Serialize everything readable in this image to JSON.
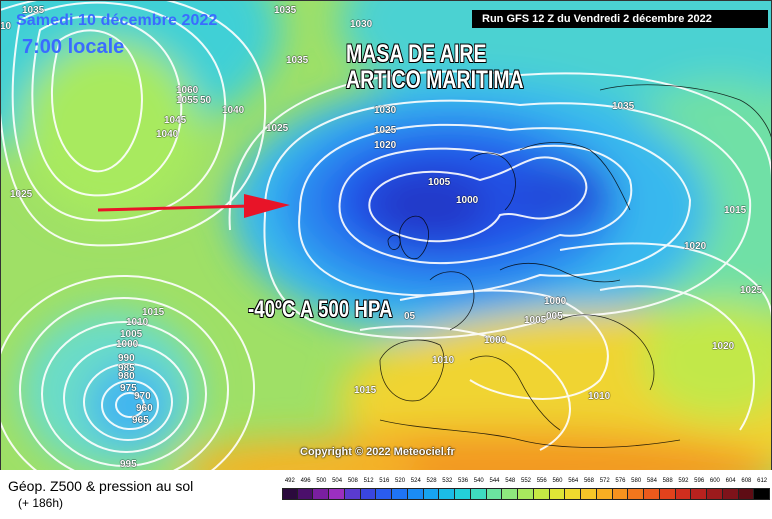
{
  "header": {
    "date": "Samedi 10 décembre 2022",
    "time": "7:00 locale",
    "run": "Run GFS 12 Z du Vendredi 2 décembre 2022"
  },
  "annotations": {
    "air_mass_line1": "MASA DE AIRE",
    "air_mass_line2": "ARTICO MARITIMA",
    "temperature": "-40ºC A 500 HPA"
  },
  "copyright": "Copyright © 2022 Meteociel.fr",
  "legend": {
    "title": "Géop. Z500 & pression au sol",
    "subtitle": "(+ 186h)",
    "scale_values": [
      "492",
      "496",
      "500",
      "504",
      "508",
      "512",
      "516",
      "520",
      "524",
      "528",
      "532",
      "536",
      "540",
      "544",
      "548",
      "552",
      "556",
      "560",
      "564",
      "568",
      "572",
      "576",
      "580",
      "584",
      "588",
      "592",
      "596",
      "600",
      "604",
      "608",
      "612"
    ],
    "scale_colors": [
      "#2b0a3d",
      "#4b0f6b",
      "#7a1fa0",
      "#9b2fc0",
      "#5a3bd0",
      "#3a46e0",
      "#2a5cf0",
      "#1f74f5",
      "#1a8cf5",
      "#17a4f0",
      "#1bbce6",
      "#23d0d8",
      "#3fdcc0",
      "#6be4a0",
      "#8ee87e",
      "#a8ea5e",
      "#c6ea44",
      "#dfe636",
      "#f0da2e",
      "#f7c628",
      "#f8ae22",
      "#f6921e",
      "#f2761c",
      "#ec5a1c",
      "#e2421c",
      "#d12e1e",
      "#b8221e",
      "#9c1a1c",
      "#7e131a",
      "#5e0c14",
      "#000000"
    ]
  },
  "pressure_labels": [
    {
      "text": "1035",
      "name": "isobar-label-1035-nw"
    },
    {
      "text": "1060",
      "name": "isobar-label-1060"
    },
    {
      "text": "1055",
      "name": "isobar-label-1055"
    },
    {
      "text": "50",
      "name": "isobar-label-1050-fragment"
    },
    {
      "text": "1040",
      "name": "isobar-label-1040-greenland-east"
    },
    {
      "text": "1045",
      "name": "isobar-label-1045"
    },
    {
      "text": "1040",
      "name": "isobar-label-1040-greenland-south"
    },
    {
      "text": "1035",
      "name": "isobar-label-1035-north"
    },
    {
      "text": "1030",
      "name": "isobar-label-1030-north"
    },
    {
      "text": "1035",
      "name": "isobar-label-1035-iceland"
    },
    {
      "text": "1030",
      "name": "isobar-label-1030-center"
    },
    {
      "text": "1025",
      "name": "isobar-label-1025-center"
    },
    {
      "text": "1020",
      "name": "isobar-label-1020-center"
    },
    {
      "text": "1035",
      "name": "isobar-label-1035-scandinavia"
    },
    {
      "text": "1025",
      "name": "isobar-label-1025-west"
    },
    {
      "text": "1005",
      "name": "isobar-label-1005-low"
    },
    {
      "text": "1000",
      "name": "isobar-label-1000-low"
    },
    {
      "text": "1015",
      "name": "isobar-label-1015-russia"
    },
    {
      "text": "1020",
      "name": "isobar-label-1020-east"
    },
    {
      "text": "1025",
      "name": "isobar-label-1025-east"
    },
    {
      "text": "1000",
      "name": "isobar-label-1000-europe"
    },
    {
      "text": "1005",
      "name": "isobar-label-1005-europe"
    },
    {
      "text": "005",
      "name": "isobar-label-1005-fragment"
    },
    {
      "text": "1000",
      "name": "isobar-label-1000-biscay"
    },
    {
      "text": "1020",
      "name": "isobar-label-1020-southeast"
    },
    {
      "text": "05",
      "name": "isobar-label-1005-fragment-west"
    },
    {
      "text": "1010",
      "name": "isobar-label-1010-central"
    },
    {
      "text": "1015",
      "name": "isobar-label-1015-iberia"
    },
    {
      "text": "1010",
      "name": "isobar-label-1010-italy"
    },
    {
      "text": "1015",
      "name": "isobar-label-1015-atlantic"
    },
    {
      "text": "1010",
      "name": "isobar-label-1010-atlantic"
    },
    {
      "text": "1005",
      "name": "isobar-label-1005-atlantic"
    },
    {
      "text": "1000",
      "name": "isobar-label-1000-atlantic"
    },
    {
      "text": "990",
      "name": "isobar-label-990"
    },
    {
      "text": "985",
      "name": "isobar-label-985"
    },
    {
      "text": "980",
      "name": "isobar-label-980"
    },
    {
      "text": "975",
      "name": "isobar-label-975"
    },
    {
      "text": "970",
      "name": "isobar-label-970"
    },
    {
      "text": "960",
      "name": "isobar-label-960"
    },
    {
      "text": "965",
      "name": "isobar-label-965"
    },
    {
      "text": "995",
      "name": "isobar-label-995"
    },
    {
      "text": "1025",
      "name": "isobar-label-1025-far-west"
    },
    {
      "text": "10",
      "name": "isobar-label-edge-fragment"
    }
  ]
}
